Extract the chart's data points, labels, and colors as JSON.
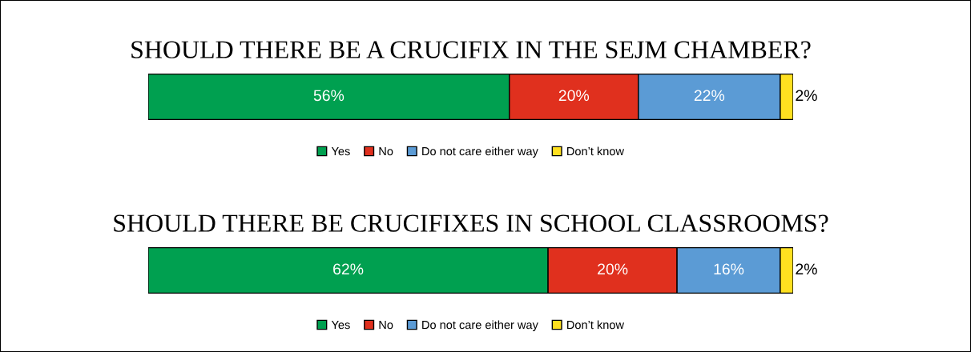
{
  "chart_data": [
    {
      "type": "bar",
      "orientation": "horizontal",
      "stacked": true,
      "title": "SHOULD THERE BE A CRUCIFIX IN THE SEJM CHAMBER?",
      "categories": [
        null
      ],
      "legend": "bottom",
      "series": [
        {
          "name": "Yes",
          "color": "#00a050",
          "values": [
            56
          ],
          "value_labels": [
            "56%"
          ]
        },
        {
          "name": "No",
          "color": "#e0301e",
          "values": [
            20
          ],
          "value_labels": [
            "20%"
          ]
        },
        {
          "name": "Do not care either way",
          "color": "#5b9bd5",
          "values": [
            22
          ],
          "value_labels": [
            "22%"
          ]
        },
        {
          "name": "Don’t know",
          "color": "#ffe020",
          "values": [
            2
          ],
          "value_labels": [
            "2%"
          ]
        }
      ]
    },
    {
      "type": "bar",
      "orientation": "horizontal",
      "stacked": true,
      "title": "SHOULD THERE BE CRUCIFIXES IN SCHOOL CLASSROOMS?",
      "categories": [
        null
      ],
      "legend": "bottom",
      "series": [
        {
          "name": "Yes",
          "color": "#00a050",
          "values": [
            62
          ],
          "value_labels": [
            "62%"
          ]
        },
        {
          "name": "No",
          "color": "#e0301e",
          "values": [
            20
          ],
          "value_labels": [
            "20%"
          ]
        },
        {
          "name": "Do not care either way",
          "color": "#5b9bd5",
          "values": [
            16
          ],
          "value_labels": [
            "16%"
          ]
        },
        {
          "name": "Don’t know",
          "color": "#ffe020",
          "values": [
            2
          ],
          "value_labels": [
            "2%"
          ]
        }
      ]
    }
  ]
}
